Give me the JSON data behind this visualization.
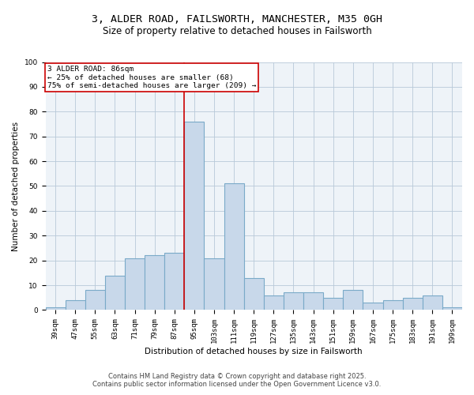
{
  "title1": "3, ALDER ROAD, FAILSWORTH, MANCHESTER, M35 0GH",
  "title2": "Size of property relative to detached houses in Failsworth",
  "xlabel": "Distribution of detached houses by size in Failsworth",
  "ylabel": "Number of detached properties",
  "categories": [
    "39sqm",
    "47sqm",
    "55sqm",
    "63sqm",
    "71sqm",
    "79sqm",
    "87sqm",
    "95sqm",
    "103sqm",
    "111sqm",
    "119sqm",
    "127sqm",
    "135sqm",
    "143sqm",
    "151sqm",
    "159sqm",
    "167sqm",
    "175sqm",
    "183sqm",
    "191sqm",
    "199sqm"
  ],
  "values": [
    1,
    4,
    8,
    14,
    21,
    22,
    23,
    76,
    21,
    51,
    13,
    6,
    7,
    7,
    5,
    8,
    3,
    4,
    5,
    6,
    1
  ],
  "bar_color": "#c8d8ea",
  "bar_edge_color": "#7aaac8",
  "bar_edge_width": 0.8,
  "vline_index": 6,
  "vline_color": "#cc0000",
  "annotation_title": "3 ALDER ROAD: 86sqm",
  "annotation_line1": "← 25% of detached houses are smaller (68)",
  "annotation_line2": "75% of semi-detached houses are larger (209) →",
  "annotation_box_color": "#ffffff",
  "annotation_box_edge": "#cc0000",
  "ylim": [
    0,
    100
  ],
  "yticks": [
    0,
    10,
    20,
    30,
    40,
    50,
    60,
    70,
    80,
    90,
    100
  ],
  "grid_color": "#b8c8d8",
  "bg_color": "#eef3f8",
  "footer1": "Contains HM Land Registry data © Crown copyright and database right 2025.",
  "footer2": "Contains public sector information licensed under the Open Government Licence v3.0.",
  "title_fontsize": 9.5,
  "subtitle_fontsize": 8.5,
  "axis_label_fontsize": 7.5,
  "tick_fontsize": 6.5,
  "annot_fontsize": 6.8,
  "footer_fontsize": 6.0
}
